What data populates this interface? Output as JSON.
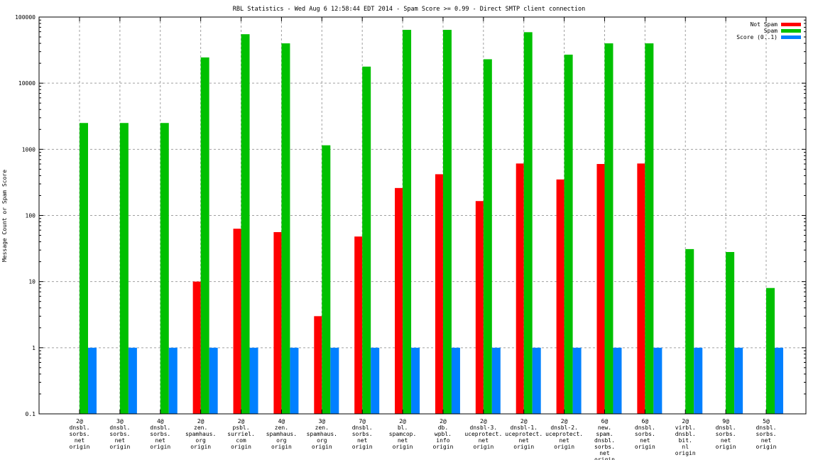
{
  "chart_data": {
    "type": "bar",
    "title": "RBL Statistics - Wed Aug  6 12:58:44 EDT 2014 - Spam Score >= 0.99 - Direct SMTP client connection",
    "xlabel": "",
    "ylabel": "Message Count or Spam Score",
    "yscale": "log",
    "ylim": [
      0.1,
      100000
    ],
    "yticks": [
      "0.1",
      "1",
      "10",
      "100",
      "1000",
      "10000",
      "100000"
    ],
    "grid": true,
    "legend_position": "top-right",
    "categories": [
      [
        "2@",
        "dnsbl.",
        "sorbs.",
        "net",
        "origin"
      ],
      [
        "3@",
        "dnsbl.",
        "sorbs.",
        "net",
        "origin"
      ],
      [
        "4@",
        "dnsbl.",
        "sorbs.",
        "net",
        "origin"
      ],
      [
        "2@",
        "zen.",
        "spamhaus.",
        "org",
        "origin"
      ],
      [
        "2@",
        "psbl.",
        "surriel.",
        "com",
        "origin"
      ],
      [
        "4@",
        "zen.",
        "spamhaus.",
        "org",
        "origin"
      ],
      [
        "3@",
        "zen.",
        "spamhaus.",
        "org",
        "origin"
      ],
      [
        "7@",
        "dnsbl.",
        "sorbs.",
        "net",
        "origin"
      ],
      [
        "2@",
        "bl.",
        "spamcop.",
        "net",
        "origin"
      ],
      [
        "2@",
        "db.",
        "wpbl.",
        "info",
        "origin"
      ],
      [
        "2@",
        "dnsbl-3.",
        "uceprotect.",
        "net",
        "origin"
      ],
      [
        "2@",
        "dnsbl-1.",
        "uceprotect.",
        "net",
        "origin"
      ],
      [
        "2@",
        "dnsbl-2.",
        "uceprotect.",
        "net",
        "origin"
      ],
      [
        "6@",
        "new.",
        "spam.",
        "dnsbl.",
        "sorbs.",
        "net",
        "origin"
      ],
      [
        "6@",
        "dnsbl.",
        "sorbs.",
        "net",
        "origin"
      ],
      [
        "2@",
        "virbl.",
        "dnsbl.",
        "bit.",
        "nl",
        "origin"
      ],
      [
        "9@",
        "dnsbl.",
        "sorbs.",
        "net",
        "origin"
      ],
      [
        "5@",
        "dnsbl.",
        "sorbs.",
        "net",
        "origin"
      ]
    ],
    "series": [
      {
        "name": "Not Spam",
        "color": "#ff0000",
        "values": [
          null,
          null,
          null,
          10,
          63,
          56,
          3,
          48,
          260,
          420,
          165,
          610,
          350,
          600,
          610,
          null,
          null,
          null
        ]
      },
      {
        "name": "Spam",
        "color": "#00c000",
        "values": [
          2500,
          2500,
          2500,
          24500,
          55000,
          40000,
          1150,
          17800,
          64000,
          64000,
          23000,
          59000,
          27000,
          40000,
          40000,
          31,
          28,
          8
        ]
      },
      {
        "name": "Score (0..1)",
        "color": "#0080ff",
        "values": [
          1,
          1,
          1,
          1,
          1,
          1,
          1,
          1,
          1,
          1,
          1,
          1,
          1,
          1,
          1,
          1,
          1,
          1
        ]
      }
    ]
  }
}
